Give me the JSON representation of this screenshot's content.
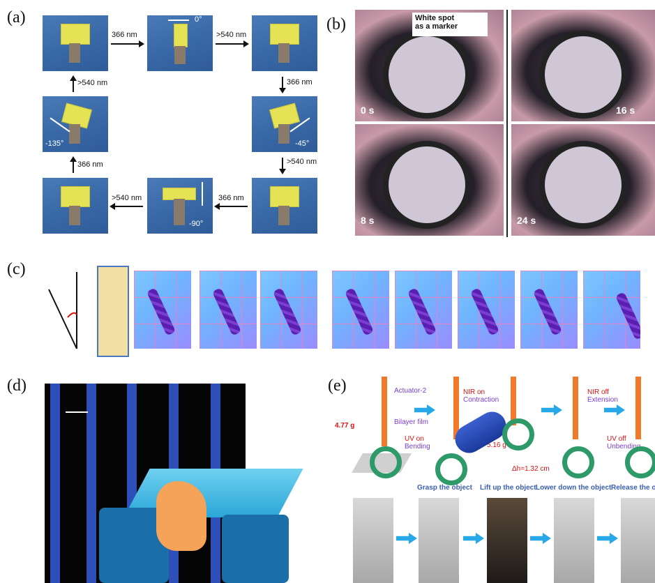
{
  "panels": {
    "a": {
      "label": "(a)",
      "arrows": {
        "top1": "366 nm",
        "top2": ">540 nm",
        "right1": "366 nm",
        "right2": ">540 nm",
        "bottom1": "366 nm",
        "bottom2": ">540 nm",
        "left1": "366 nm",
        "left2": ">540 nm"
      },
      "angles": {
        "top_mid": "0°",
        "right_mid": "-45°",
        "bottom_mid": "-90°",
        "left_mid": "-135°"
      }
    },
    "b": {
      "label": "(b)",
      "annotation": "White spot\nas a marker",
      "times": [
        "0 s",
        "16 s",
        "8 s",
        "24 s"
      ]
    },
    "c": {
      "label": "(c)"
    },
    "d": {
      "label": "(d)"
    },
    "e": {
      "label": "(e)",
      "texts": {
        "actuator": "Actuator-2",
        "nir_on": "NIR on",
        "contraction": "Contraction",
        "nir_off": "NIR off",
        "extension": "Extension",
        "weight": "4.77 g",
        "bilayer": "Bilayer film",
        "uv_on": "UV on",
        "bending": "Bending",
        "mass": "m =\n5.16 g",
        "uv_off": "UV off",
        "unbending": "Unbending",
        "dh": "Δh=1.32 cm"
      },
      "steps": [
        "Grasp the object",
        "Lift up the object",
        "Lower down the object",
        "Release the ob"
      ]
    }
  }
}
